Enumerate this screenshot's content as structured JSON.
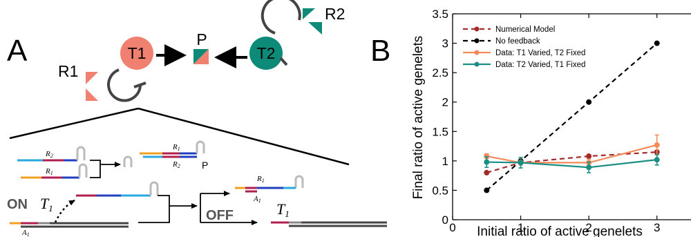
{
  "panel_a": {
    "letter": "A",
    "nodes": {
      "t1": "T1",
      "t2": "T2",
      "p": "P",
      "r1": "R1",
      "r2": "R2"
    },
    "strand_labels": {
      "r2_top": "R",
      "r2_top_sub": "2",
      "r1_mid": "R",
      "r1_mid_sub": "1",
      "r1_right": "R",
      "r1_right_sub": "1",
      "r2_right": "R",
      "r2_right_sub": "2",
      "p_label": "P",
      "r1_off": "R",
      "r1_off_sub": "1",
      "a1_off": "A",
      "a1_off_sub": "1",
      "a1_bottom": "A",
      "a1_bottom_sub": "1",
      "t1_on": "T",
      "t1_on_sub": "1",
      "t1_off": "T",
      "t1_off_sub": "1"
    },
    "on_label": "ON",
    "off_label": "OFF",
    "colors": {
      "t1": "#f08070",
      "t2": "#0e8a78",
      "red_strand": "#b01f4c",
      "blue_strand": "#1f3fbf",
      "cyan_strand": "#29a8e0",
      "orange_strand": "#f0a020",
      "gray": "#555555"
    }
  },
  "panel_b": {
    "letter": "B"
  },
  "chart_data": {
    "type": "line",
    "xlabel": "Initial ratio of active genelets",
    "ylabel": "Final ratio of active genelets",
    "xlim": [
      0,
      3.5
    ],
    "ylim": [
      0,
      3.5
    ],
    "xticks": [
      0,
      1,
      2,
      3
    ],
    "yticks": [
      0,
      0.5,
      1,
      1.5,
      2,
      2.5,
      3,
      3.5
    ],
    "xtick_labels": [
      "0",
      "1",
      "2",
      "3"
    ],
    "ytick_labels": [
      "0",
      "0.5",
      "1",
      "1.5",
      "2",
      "2.5",
      "3",
      "3.5"
    ],
    "legend_position": "top-left",
    "series": [
      {
        "name": "Numerical Model",
        "color": "#a52a2a",
        "dash": "dashed",
        "x": [
          0.5,
          1,
          2,
          3
        ],
        "y": [
          0.8,
          0.97,
          1.08,
          1.15
        ],
        "err": []
      },
      {
        "name": "No feedback",
        "color": "#000000",
        "dash": "dashed",
        "x": [
          0.5,
          1,
          2,
          3
        ],
        "y": [
          0.5,
          1.0,
          2.0,
          3.0
        ],
        "err": []
      },
      {
        "name": "Data: T1 Varied, T2 Fixed",
        "color": "#f58a5a",
        "dash": "solid",
        "x": [
          0.5,
          1,
          2,
          3
        ],
        "y": [
          1.08,
          0.97,
          0.97,
          1.27
        ],
        "err": [
          0.04,
          0.04,
          0.06,
          0.17
        ]
      },
      {
        "name": "Data: T2 Varied, T1 Fixed",
        "color": "#1a8f84",
        "dash": "solid",
        "x": [
          0.5,
          1,
          2,
          3
        ],
        "y": [
          0.98,
          0.97,
          0.89,
          1.02
        ],
        "err": [
          0.09,
          0.09,
          0.09,
          0.09
        ]
      }
    ]
  }
}
